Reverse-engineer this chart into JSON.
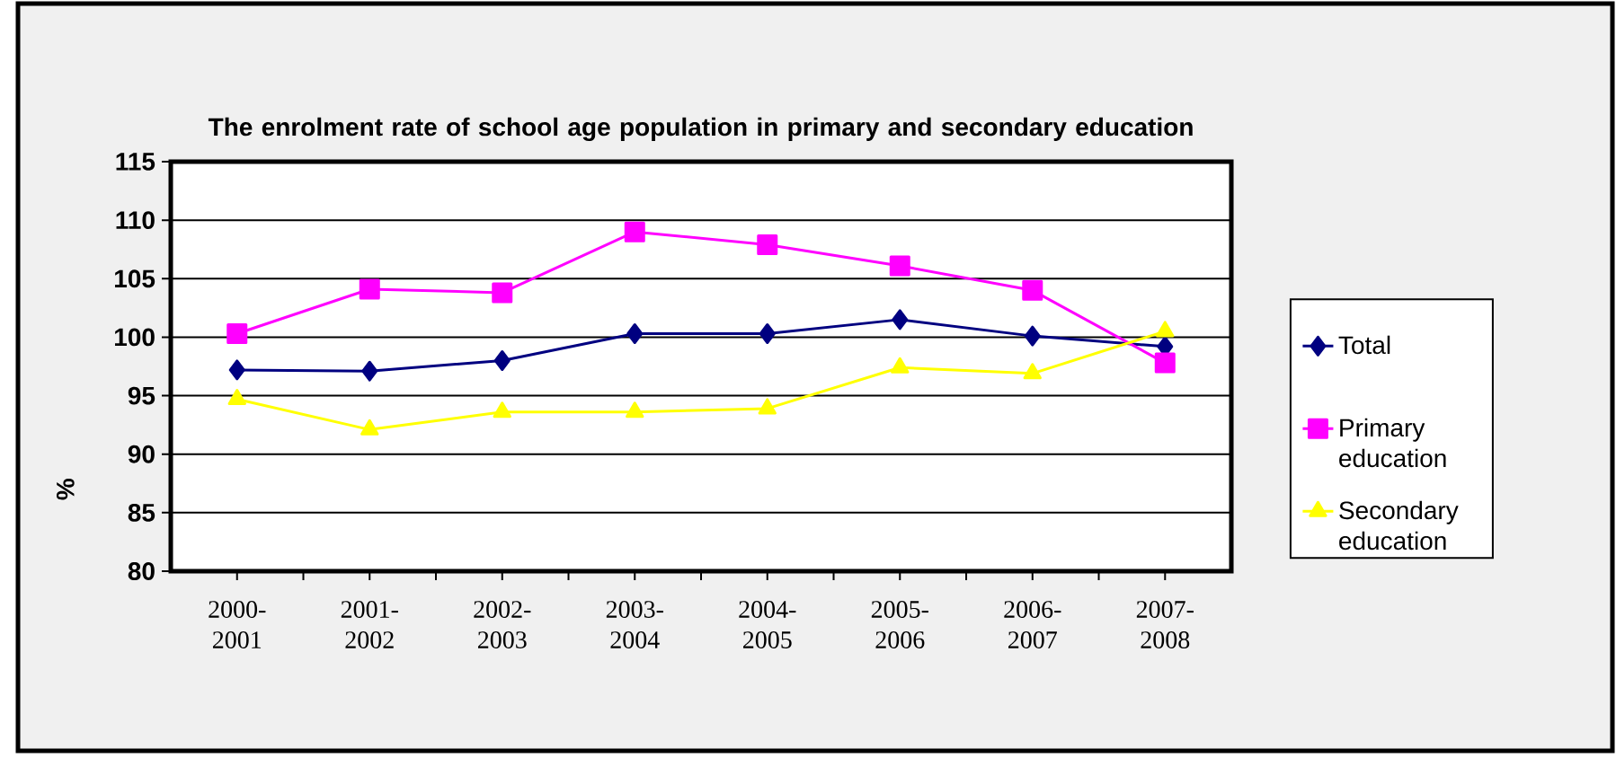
{
  "chart_data": {
    "type": "line",
    "title": "The enrolment rate of school age population  in primary and secondary education",
    "ylabel": "%",
    "categories": [
      "2000-2001",
      "2001-2002",
      "2002-2003",
      "2003-2004",
      "2004-2005",
      "2005-2006",
      "2006-2007",
      "2007-2008"
    ],
    "series": [
      {
        "name": "Total",
        "color": "#000080",
        "marker": "diamond",
        "values": [
          97.2,
          97.1,
          98.0,
          100.3,
          100.3,
          101.5,
          100.1,
          99.2
        ]
      },
      {
        "name": "Primary education",
        "color": "#ff00ff",
        "marker": "square",
        "values": [
          100.3,
          104.1,
          103.8,
          109.0,
          107.9,
          106.1,
          104.0,
          97.8
        ]
      },
      {
        "name": "Secondary education",
        "color": "#ffff00",
        "marker": "triangle",
        "values": [
          94.7,
          92.1,
          93.6,
          93.6,
          93.9,
          97.4,
          96.9,
          100.5
        ]
      }
    ],
    "ylim": [
      80,
      115
    ],
    "yticks": [
      80,
      85,
      90,
      95,
      100,
      105,
      110,
      115
    ],
    "grid": "y",
    "legend": "right",
    "line_style": "solid"
  }
}
